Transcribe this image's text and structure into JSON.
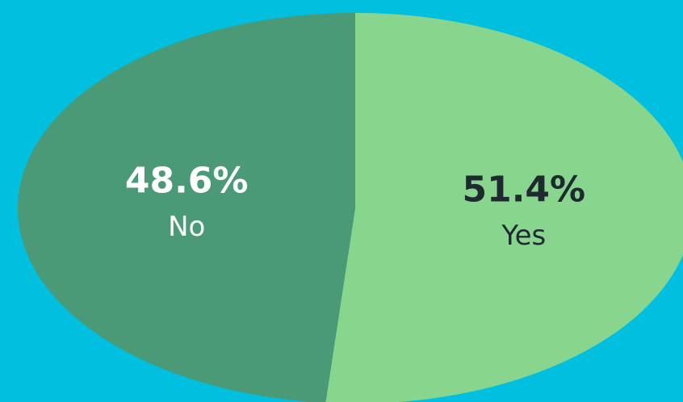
{
  "chart_data": {
    "type": "pie",
    "categories": [
      "Yes",
      "No"
    ],
    "values": [
      51.4,
      48.6
    ],
    "value_labels": [
      "51.4%",
      "48.6%"
    ],
    "colors": [
      "#88d68e",
      "#4a9a78"
    ],
    "label_colors": [
      "#1f2a30",
      "#ffffff"
    ],
    "background": "#00bfdf"
  }
}
